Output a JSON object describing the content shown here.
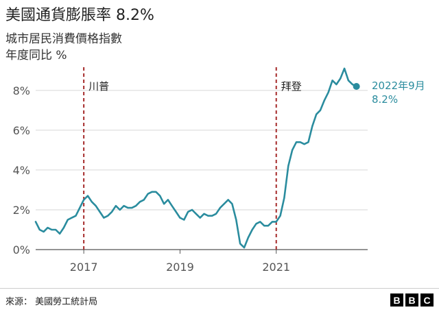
{
  "chart_data": {
    "type": "line",
    "title": "美國通貨膨脹率 8.2%",
    "subtitle": [
      "城市居民消費價格指數",
      "年度同比 %"
    ],
    "x_ticks": [
      "2017",
      "2019",
      "2021"
    ],
    "y_ticks": [
      "0%",
      "2%",
      "4%",
      "6%",
      "8%"
    ],
    "ylim": [
      0,
      9.2
    ],
    "grid": true,
    "line_color": "#2a8c9e",
    "events": [
      {
        "label": "川普",
        "x": "2017-01"
      },
      {
        "label": "拜登",
        "x": "2021-01"
      }
    ],
    "event_color": "#a52a2a",
    "series": [
      {
        "x": [
          "2016-01",
          "2016-02",
          "2016-03",
          "2016-04",
          "2016-05",
          "2016-06",
          "2016-07",
          "2016-08",
          "2016-09",
          "2016-10",
          "2016-11",
          "2016-12",
          "2017-01",
          "2017-02",
          "2017-03",
          "2017-04",
          "2017-05",
          "2017-06",
          "2017-07",
          "2017-08",
          "2017-09",
          "2017-10",
          "2017-11",
          "2017-12",
          "2018-01",
          "2018-02",
          "2018-03",
          "2018-04",
          "2018-05",
          "2018-06",
          "2018-07",
          "2018-08",
          "2018-09",
          "2018-10",
          "2018-11",
          "2018-12",
          "2019-01",
          "2019-02",
          "2019-03",
          "2019-04",
          "2019-05",
          "2019-06",
          "2019-07",
          "2019-08",
          "2019-09",
          "2019-10",
          "2019-11",
          "2019-12",
          "2020-01",
          "2020-02",
          "2020-03",
          "2020-04",
          "2020-05",
          "2020-06",
          "2020-07",
          "2020-08",
          "2020-09",
          "2020-10",
          "2020-11",
          "2020-12",
          "2021-01",
          "2021-02",
          "2021-03",
          "2021-04",
          "2021-05",
          "2021-06",
          "2021-07",
          "2021-08",
          "2021-09",
          "2021-10",
          "2021-11",
          "2021-12",
          "2022-01",
          "2022-02",
          "2022-03",
          "2022-04",
          "2022-05",
          "2022-06",
          "2022-07",
          "2022-08",
          "2022-09"
        ],
        "values": [
          1.4,
          1.0,
          0.9,
          1.1,
          1.0,
          1.0,
          0.8,
          1.1,
          1.5,
          1.6,
          1.7,
          2.1,
          2.5,
          2.7,
          2.4,
          2.2,
          1.9,
          1.6,
          1.7,
          1.9,
          2.2,
          2.0,
          2.2,
          2.1,
          2.1,
          2.2,
          2.4,
          2.5,
          2.8,
          2.9,
          2.9,
          2.7,
          2.3,
          2.5,
          2.2,
          1.9,
          1.6,
          1.5,
          1.9,
          2.0,
          1.8,
          1.6,
          1.8,
          1.7,
          1.7,
          1.8,
          2.1,
          2.3,
          2.5,
          2.3,
          1.5,
          0.3,
          0.1,
          0.6,
          1.0,
          1.3,
          1.4,
          1.2,
          1.2,
          1.4,
          1.4,
          1.7,
          2.6,
          4.2,
          5.0,
          5.4,
          5.4,
          5.3,
          5.4,
          6.2,
          6.8,
          7.0,
          7.5,
          7.9,
          8.5,
          8.3,
          8.6,
          9.1,
          8.5,
          8.3,
          8.2
        ]
      }
    ],
    "last_point_label": [
      "2022年9月",
      "8.2%"
    ]
  },
  "source": "來源：  美國勞工統計局",
  "logo": [
    "B",
    "B",
    "C"
  ]
}
